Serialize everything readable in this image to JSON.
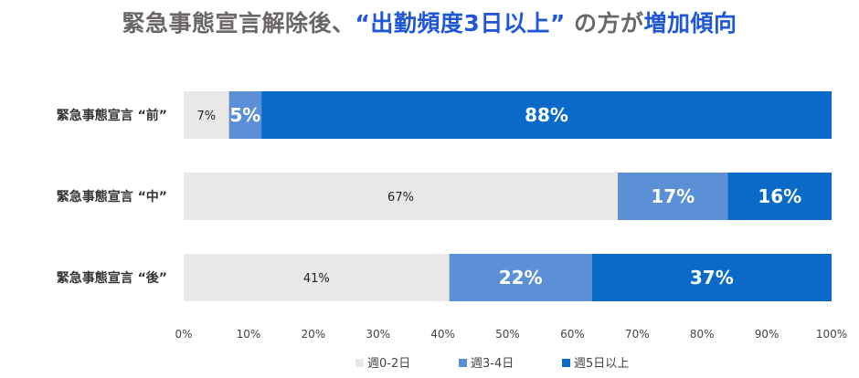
{
  "title": {
    "part1": "緊急事態宣言解除後、",
    "part2": "“出勤頻度3日以上”",
    "part3": " の方が",
    "part4": "増加傾向",
    "color_main": "#6b6766",
    "color_highlight": "#1f57d6"
  },
  "chart_data": {
    "type": "bar",
    "orientation": "horizontal",
    "stacked": true,
    "percent": true,
    "categories": [
      "緊急事態宣言 “前”",
      "緊急事態宣言 “中”",
      "緊急事態宣言 “後”"
    ],
    "series": [
      {
        "name": "週0-2日",
        "values": [
          7,
          67,
          41
        ],
        "labels": [
          "7%",
          "67%",
          "41%"
        ],
        "color": "#e9e8e7",
        "label_color": "#222222"
      },
      {
        "name": "週3-4日",
        "values": [
          5,
          17,
          22
        ],
        "labels": [
          "5%",
          "17%",
          "22%"
        ],
        "color": "#5b8fd6",
        "label_color": "#ffffff"
      },
      {
        "name": "週5日以上",
        "values": [
          88,
          16,
          37
        ],
        "labels": [
          "88%",
          "16%",
          "37%"
        ],
        "color": "#0a6ac7",
        "label_color": "#ffffff"
      }
    ],
    "xlim": [
      0,
      100
    ],
    "xticks": [
      "0%",
      "10%",
      "20%",
      "30%",
      "40%",
      "50%",
      "60%",
      "70%",
      "80%",
      "90%",
      "100%"
    ],
    "legend_position": "bottom-center",
    "grid": false
  }
}
